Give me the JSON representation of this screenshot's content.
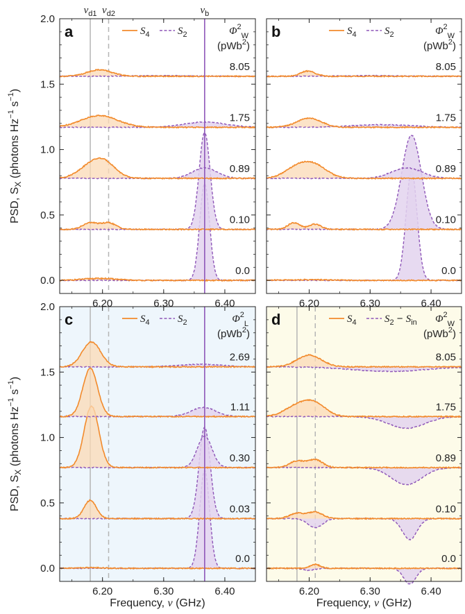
{
  "colors": {
    "s4": "#f28a2b",
    "s4_fill": "#fbd9b5",
    "s2": "#8e56b8",
    "s2_fill": "#e3d3ee",
    "vline_solid": "#b5b5b5",
    "vline_dashed": "#b5b5b5",
    "panel_c_bg": "#eef6fc",
    "panel_d_bg": "#fdfbe9"
  },
  "shared": {
    "y_axis_label": "PSD, S",
    "y_axis_sub": "X",
    "y_axis_unit": " (photons Hz",
    "y_axis_unit_tail": "s",
    "x_axis_label_left": "Frequency, ",
    "x_axis_label_nu": "ν",
    "x_axis_label_right": " (GHz)",
    "y_ticks": [
      "0.0",
      "0.5",
      "1.0",
      "1.5",
      "2.0"
    ],
    "x_ticks": [
      "6.20",
      "6.30",
      "6.40"
    ],
    "top_labels": {
      "vd1": "ν",
      "vd1_sub": "d1",
      "vd2": "ν",
      "vd2_sub": "d2",
      "vb": "ν",
      "vb_sub": "b"
    }
  },
  "chart_data": [
    {
      "panel": "a",
      "type": "line",
      "legend": [
        "S4",
        "S2"
      ],
      "legend_labels": {
        "s4": "S",
        "s4_sub": "4",
        "s2": "S",
        "s2_sub": "2"
      },
      "power_label_top": "Φ",
      "power_label_sup": "2",
      "power_label_sub": "W",
      "power_unit": "(pWb",
      "offsets": [
        0.0,
        0.39,
        0.78,
        1.17,
        1.56
      ],
      "power_values": [
        "0.0",
        "0.10",
        "0.89",
        "1.75",
        "8.05"
      ],
      "xlim": [
        6.13,
        6.45
      ],
      "ylim": [
        -0.1,
        2.0
      ],
      "vlines": {
        "vd1": 6.18,
        "vd2": 6.21,
        "vb": 6.367
      },
      "traces": [
        {
          "s4_peaks": [
            [
              6.18,
              0.01,
              0.02
            ],
            [
              6.21,
              0.01,
              0.02
            ]
          ],
          "s2_peaks": [
            [
              6.367,
              0.74,
              0.008
            ]
          ]
        },
        {
          "s4_peaks": [
            [
              6.18,
              0.05,
              0.012
            ],
            [
              6.21,
              0.05,
              0.012
            ]
          ],
          "s2_peaks": [
            [
              6.367,
              0.74,
              0.009
            ]
          ]
        },
        {
          "s4_peaks": [
            [
              6.18,
              0.09,
              0.02
            ],
            [
              6.205,
              0.1,
              0.018
            ]
          ],
          "s2_peaks": [
            [
              6.367,
              0.08,
              0.02
            ]
          ]
        },
        {
          "s4_peaks": [
            [
              6.195,
              0.09,
              0.03
            ]
          ],
          "s2_peaks": [
            [
              6.367,
              0.04,
              0.035
            ]
          ]
        },
        {
          "s4_peaks": [
            [
              6.195,
              0.05,
              0.02
            ]
          ],
          "s2_peaks": [
            [
              6.3,
              0.005,
              0.05
            ]
          ]
        }
      ]
    },
    {
      "panel": "b",
      "type": "line",
      "legend": [
        "S4",
        "S2"
      ],
      "legend_labels": {
        "s4": "S",
        "s4_sub": "4",
        "s2": "S",
        "s2_sub": "2"
      },
      "power_label_top": "Φ",
      "power_label_sup": "2",
      "power_label_sub": "W",
      "power_unit": "(pWb",
      "offsets": [
        0.0,
        0.39,
        0.78,
        1.17,
        1.56
      ],
      "power_values": [
        "0.0",
        "0.10",
        "0.89",
        "1.75",
        "8.05"
      ],
      "xlim": [
        6.13,
        6.45
      ],
      "ylim": [
        -0.1,
        2.0
      ],
      "traces": [
        {
          "s4_peaks": [
            [
              6.2,
              0.005,
              0.04
            ]
          ],
          "s2_peaks": [
            [
              6.368,
              0.84,
              0.009
            ]
          ]
        },
        {
          "s4_peaks": [
            [
              6.175,
              0.05,
              0.01
            ],
            [
              6.21,
              0.04,
              0.01
            ]
          ],
          "s2_peaks": [
            [
              6.368,
              0.72,
              0.016
            ]
          ]
        },
        {
          "s4_peaks": [
            [
              6.18,
              0.08,
              0.02
            ],
            [
              6.21,
              0.09,
              0.02
            ]
          ],
          "s2_peaks": [
            [
              6.36,
              0.08,
              0.025
            ]
          ]
        },
        {
          "s4_peaks": [
            [
              6.2,
              0.07,
              0.02
            ]
          ],
          "s2_peaks": [
            [
              6.32,
              0.02,
              0.05
            ]
          ]
        },
        {
          "s4_peaks": [
            [
              6.198,
              0.04,
              0.012
            ]
          ],
          "s2_peaks": [
            [
              6.3,
              0.005,
              0.05
            ]
          ]
        }
      ]
    },
    {
      "panel": "c",
      "type": "line",
      "legend": [
        "S4",
        "S2"
      ],
      "legend_labels": {
        "s4": "S",
        "s4_sub": "4",
        "s2": "S",
        "s2_sub": "2"
      },
      "power_label_top": "Φ",
      "power_label_sup": "2",
      "power_label_sub": "L",
      "power_unit": "(pWb",
      "offsets": [
        0.0,
        0.38,
        0.77,
        1.16,
        1.54
      ],
      "power_values": [
        "0.0",
        "0.03",
        "0.30",
        "1.11",
        "2.69"
      ],
      "xlim": [
        6.13,
        6.45
      ],
      "ylim": [
        -0.1,
        2.0
      ],
      "vlines": {
        "vd1": 6.18,
        "vd2": 6.21,
        "vb": 6.367
      },
      "traces": [
        {
          "s4_peaks": [
            [
              6.18,
              0.005,
              0.02
            ]
          ],
          "s2_peaks": [
            [
              6.367,
              0.75,
              0.008
            ]
          ]
        },
        {
          "s4_peaks": [
            [
              6.18,
              0.14,
              0.01
            ]
          ],
          "s2_peaks": [
            [
              6.367,
              0.7,
              0.009
            ]
          ]
        },
        {
          "s4_peaks": [
            [
              6.182,
              0.47,
              0.012
            ]
          ],
          "s2_peaks": [
            [
              6.367,
              0.24,
              0.012
            ]
          ]
        },
        {
          "s4_peaks": [
            [
              6.18,
              0.37,
              0.012
            ]
          ],
          "s2_peaks": [
            [
              6.365,
              0.07,
              0.02
            ]
          ]
        },
        {
          "s4_peaks": [
            [
              6.182,
              0.19,
              0.015
            ]
          ],
          "s2_peaks": [
            [
              6.36,
              0.02,
              0.035
            ]
          ]
        }
      ]
    },
    {
      "panel": "d",
      "type": "line",
      "legend": [
        "S4",
        "S2 − Sin"
      ],
      "legend_labels": {
        "s4": "S",
        "s4_sub": "4",
        "s2": "S",
        "s2_sub": "2",
        "s2_minus": " − S",
        "s2_minus_sub": "in"
      },
      "power_label_top": "Φ",
      "power_label_sup": "2",
      "power_label_sub": "W",
      "power_unit": "(pWb",
      "offsets": [
        0.0,
        0.38,
        0.77,
        1.16,
        1.54
      ],
      "power_values": [
        "0.0",
        "0.10",
        "0.89",
        "1.75",
        "8.05"
      ],
      "xlim": [
        6.13,
        6.45
      ],
      "ylim": [
        -0.1,
        2.0
      ],
      "vlines": {
        "vd1": 6.18,
        "vd2": 6.21
      },
      "traces": [
        {
          "s4_peaks": [
            [
              6.21,
              0.03,
              0.008
            ]
          ],
          "s2_peaks": [
            [
              6.365,
              -0.12,
              0.01
            ],
            [
              6.2,
              -0.015,
              0.01
            ]
          ]
        },
        {
          "s4_peaks": [
            [
              6.18,
              0.04,
              0.012
            ],
            [
              6.21,
              0.05,
              0.012
            ]
          ],
          "s2_peaks": [
            [
              6.365,
              -0.16,
              0.012
            ],
            [
              6.21,
              -0.07,
              0.012
            ]
          ]
        },
        {
          "s4_peaks": [
            [
              6.18,
              0.05,
              0.012
            ],
            [
              6.21,
              0.06,
              0.012
            ]
          ],
          "s2_peaks": [
            [
              6.36,
              -0.13,
              0.025
            ]
          ]
        },
        {
          "s4_peaks": [
            [
              6.18,
              0.08,
              0.02
            ],
            [
              6.21,
              0.09,
              0.018
            ]
          ],
          "s2_peaks": [
            [
              6.36,
              -0.09,
              0.03
            ]
          ]
        },
        {
          "s4_peaks": [
            [
              6.2,
              0.09,
              0.02
            ]
          ],
          "s2_peaks": [
            [
              6.33,
              -0.035,
              0.06
            ]
          ]
        }
      ]
    }
  ]
}
